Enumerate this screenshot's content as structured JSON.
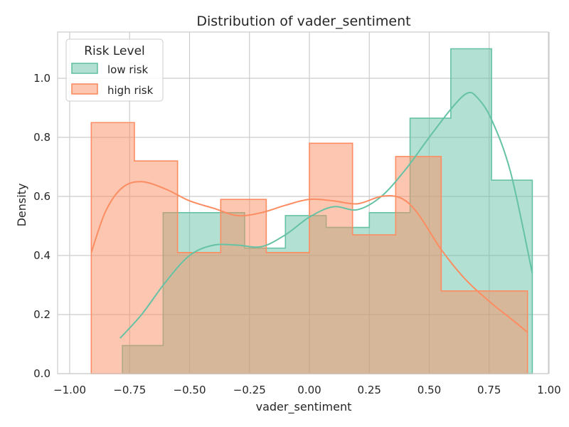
{
  "chart_data": {
    "type": "histogram",
    "title": "Distribution of vader_sentiment",
    "xlabel": "vader_sentiment",
    "ylabel": "Density",
    "xlim": [
      -1.0,
      1.0
    ],
    "ylim": [
      0,
      1.15
    ],
    "xticks": [
      "−1.00",
      "−0.75",
      "−0.50",
      "−0.25",
      "0.00",
      "0.25",
      "0.50",
      "0.75",
      "1.00"
    ],
    "yticks": [
      "0.0",
      "0.2",
      "0.4",
      "0.6",
      "0.8",
      "1.0"
    ],
    "grid": true,
    "legend": {
      "title": "Risk Level",
      "position": "top-left"
    },
    "series": [
      {
        "name": "low risk",
        "color": "#66c2a5",
        "bin_edges": [
          -0.78,
          -0.61,
          -0.44,
          -0.27,
          -0.1,
          0.07,
          0.25,
          0.42,
          0.59,
          0.76,
          0.93
        ],
        "density": [
          0.095,
          0.545,
          0.545,
          0.425,
          0.535,
          0.495,
          0.545,
          0.865,
          1.1,
          0.655
        ],
        "kde": [
          [
            -0.79,
            0.12
          ],
          [
            -0.7,
            0.2
          ],
          [
            -0.6,
            0.31
          ],
          [
            -0.5,
            0.4
          ],
          [
            -0.4,
            0.435
          ],
          [
            -0.3,
            0.435
          ],
          [
            -0.2,
            0.43
          ],
          [
            -0.1,
            0.47
          ],
          [
            0.0,
            0.53
          ],
          [
            0.1,
            0.565
          ],
          [
            0.2,
            0.555
          ],
          [
            0.3,
            0.6
          ],
          [
            0.4,
            0.69
          ],
          [
            0.5,
            0.8
          ],
          [
            0.6,
            0.905
          ],
          [
            0.66,
            0.95
          ],
          [
            0.7,
            0.935
          ],
          [
            0.76,
            0.86
          ],
          [
            0.84,
            0.68
          ],
          [
            0.93,
            0.34
          ]
        ]
      },
      {
        "name": "high risk",
        "color": "#fc8d62",
        "bin_edges": [
          -0.91,
          -0.73,
          -0.55,
          -0.37,
          -0.18,
          0.0,
          0.18,
          0.36,
          0.55,
          0.73,
          0.91
        ],
        "density": [
          0.85,
          0.72,
          0.41,
          0.59,
          0.41,
          0.78,
          0.47,
          0.735,
          0.28,
          0.28
        ],
        "kde": [
          [
            -0.91,
            0.41
          ],
          [
            -0.85,
            0.55
          ],
          [
            -0.78,
            0.63
          ],
          [
            -0.7,
            0.65
          ],
          [
            -0.6,
            0.625
          ],
          [
            -0.5,
            0.585
          ],
          [
            -0.4,
            0.56
          ],
          [
            -0.3,
            0.535
          ],
          [
            -0.2,
            0.545
          ],
          [
            -0.1,
            0.57
          ],
          [
            0.0,
            0.59
          ],
          [
            0.1,
            0.585
          ],
          [
            0.2,
            0.575
          ],
          [
            0.3,
            0.6
          ],
          [
            0.38,
            0.595
          ],
          [
            0.45,
            0.545
          ],
          [
            0.55,
            0.42
          ],
          [
            0.65,
            0.32
          ],
          [
            0.75,
            0.245
          ],
          [
            0.85,
            0.18
          ],
          [
            0.91,
            0.14
          ]
        ]
      }
    ]
  }
}
